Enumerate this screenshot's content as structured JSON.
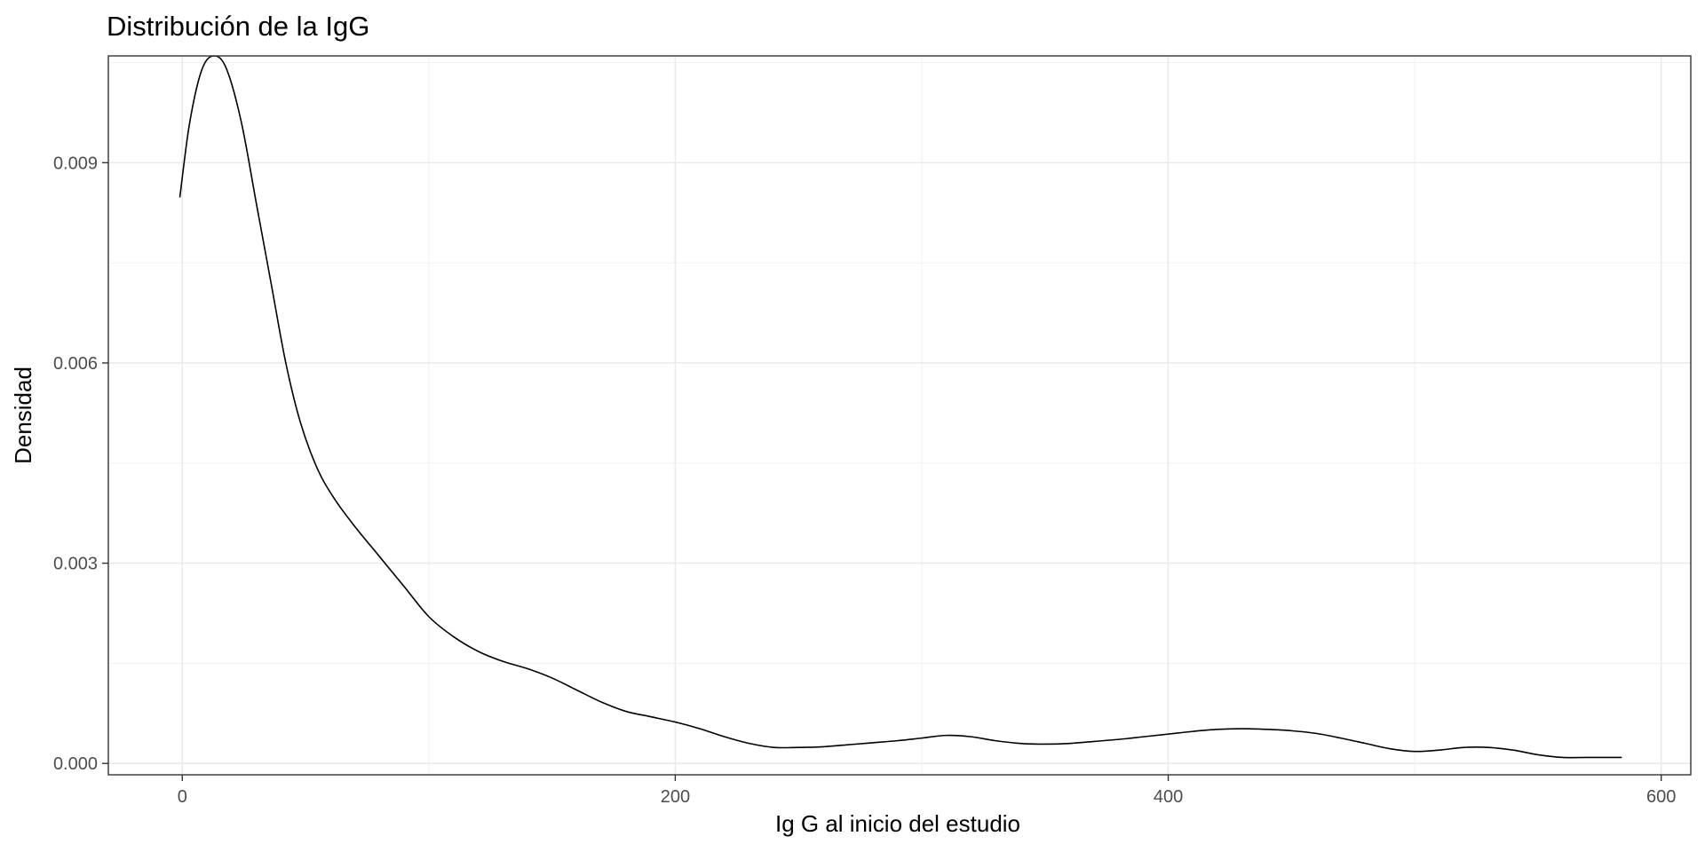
{
  "chart_data": {
    "type": "line",
    "title": "Distribución de la IgG",
    "xlabel": "Ig G al inicio del estudio",
    "ylabel": "Densidad",
    "xlim": [
      -30,
      612
    ],
    "ylim": [
      -0.00017,
      0.0106
    ],
    "x_ticks": [
      0,
      200,
      400,
      600
    ],
    "x_tick_labels": [
      "0",
      "200",
      "400",
      "600"
    ],
    "y_ticks": [
      0.0,
      0.003,
      0.006,
      0.009
    ],
    "y_tick_labels": [
      "0.000",
      "0.003",
      "0.006",
      "0.009"
    ],
    "grid": true,
    "legend": "none",
    "colors": {
      "line": "#000000",
      "grid": "#ebebeb",
      "panel_border": "#333333",
      "tick_text": "#4d4d4d"
    },
    "series": [
      {
        "x": [
          -1,
          3,
          8,
          13,
          18,
          24,
          30,
          36,
          42,
          48,
          55,
          62,
          70,
          80,
          90,
          100,
          110,
          120,
          130,
          140,
          150,
          160,
          170,
          180,
          190,
          200,
          210,
          220,
          230,
          240,
          250,
          260,
          270,
          280,
          290,
          300,
          310,
          320,
          330,
          340,
          350,
          360,
          370,
          380,
          390,
          400,
          410,
          420,
          430,
          440,
          450,
          460,
          470,
          480,
          490,
          500,
          510,
          520,
          530,
          540,
          550,
          560,
          570,
          584
        ],
        "y": [
          0.00848,
          0.0096,
          0.0104,
          0.0106,
          0.0104,
          0.0096,
          0.0084,
          0.0072,
          0.006,
          0.0051,
          0.0044,
          0.00395,
          0.00355,
          0.0031,
          0.00265,
          0.0022,
          0.0019,
          0.00168,
          0.00153,
          0.00142,
          0.00128,
          0.0011,
          0.00092,
          0.00078,
          0.0007,
          0.00062,
          0.00052,
          0.0004,
          0.0003,
          0.00024,
          0.00024,
          0.00025,
          0.00028,
          0.00031,
          0.00034,
          0.00038,
          0.00042,
          0.0004,
          0.00034,
          0.0003,
          0.00029,
          0.0003,
          0.00033,
          0.00036,
          0.0004,
          0.00044,
          0.00048,
          0.00051,
          0.00052,
          0.00051,
          0.00049,
          0.00045,
          0.00038,
          0.0003,
          0.00022,
          0.00018,
          0.0002,
          0.00024,
          0.00024,
          0.0002,
          0.00013,
          9e-05,
          9e-05,
          9e-05
        ]
      }
    ]
  }
}
